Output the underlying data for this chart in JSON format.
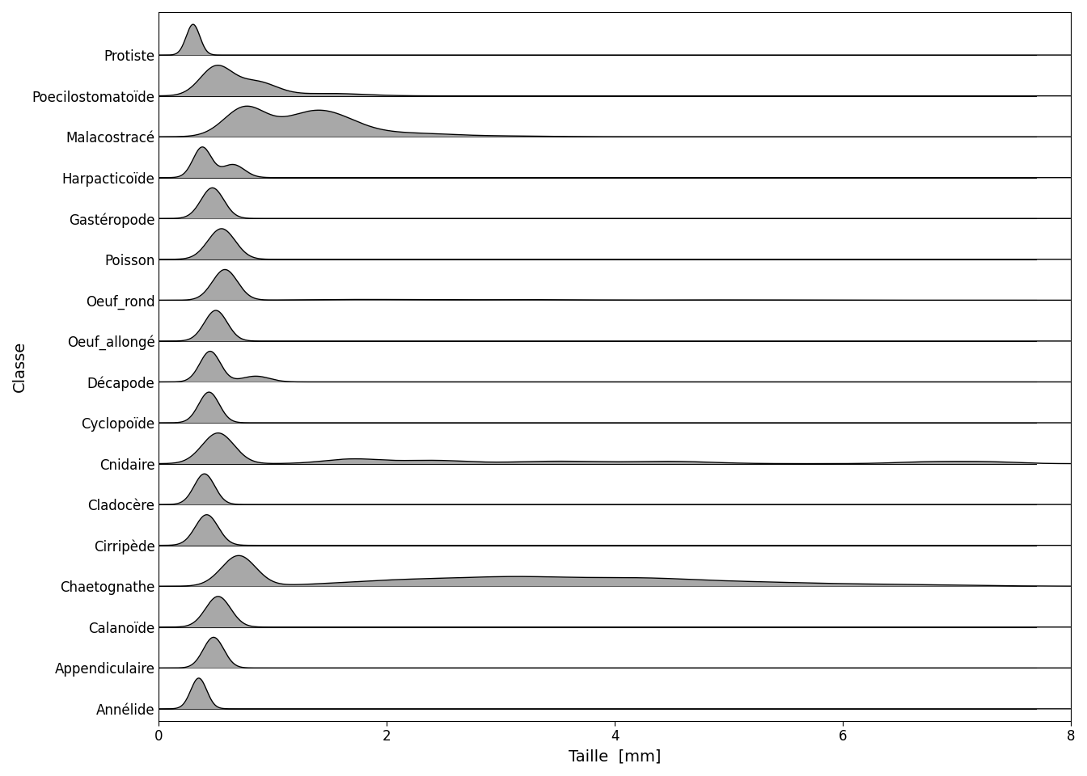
{
  "classes": [
    "Annélide",
    "Appendiculaire",
    "Calanoïde",
    "Chaetognathe",
    "Cirripède",
    "Cladocère",
    "Cnidaire",
    "Cyclopoïde",
    "Décapode",
    "Oeuf_allongé",
    "Oeuf_rond",
    "Poisson",
    "Gastéropode",
    "Harpacticoïde",
    "Malacostracé",
    "Poecilostomatoïde",
    "Protiste"
  ],
  "x_min": 0.0,
  "x_max": 7.7,
  "fill_color": "#999999",
  "line_color": "#000000",
  "background_color": "#ffffff",
  "xlabel": "Taille  [mm]",
  "ylabel": "Classe",
  "label_fontsize": 14,
  "tick_fontsize": 12,
  "ridge_scale": 0.75,
  "overlap": 1.0
}
